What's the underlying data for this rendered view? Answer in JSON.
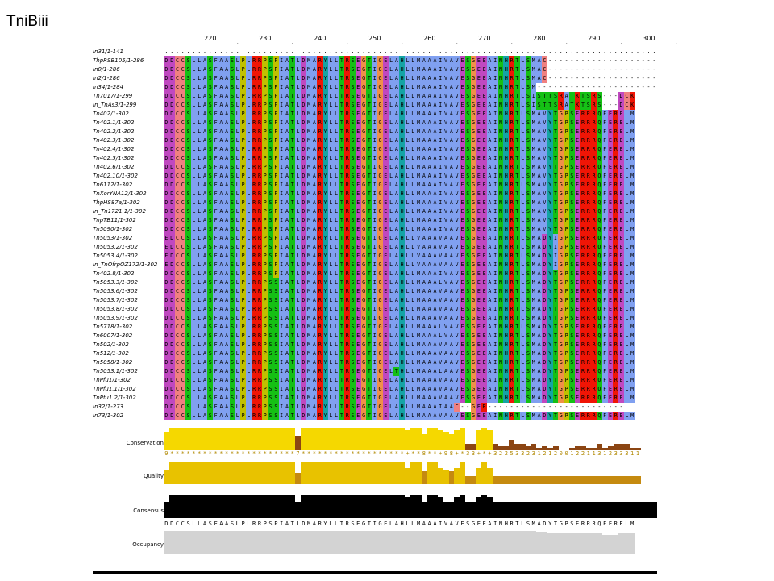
{
  "title": "TniBiii",
  "ruler": {
    "start_position": 212,
    "labels": [
      "220",
      "230",
      "240",
      "250",
      "260",
      "270",
      "280",
      "290",
      "300"
    ]
  },
  "sequences": [
    {
      "name": "In31/1-141",
      "seq": "..........................................................................................V"
    },
    {
      "name": "ThpRSB105/1-286",
      "seq": "DDCCSLLASFAASLPLRRPSPIATLDMARYLLTRSEGTIGELAHLLMAAAIVAVESGEEAINHRTLSMAC----------------------"
    },
    {
      "name": "In0/1-286",
      "seq": "DDCCSLLASFAASLPLRRPSPIATLDMARYLLTRSEGTIGELAHLLMAAAIVAVESGEEAINHRTLSMAC----------------------"
    },
    {
      "name": "In2/1-286",
      "seq": "DDCCSLLASFAASLPLRRPSPIATLDMARYLLTRSEGTIGELAHLLMAAAIVAVESGEEAINHRTLSMAC----------------------"
    },
    {
      "name": "In34/1-284",
      "seq": "DDCCSLLASFAASLPLRRPSPIATLDMARYLLTRSEGTIGELAHLLMAAAIVAVESGEEAINHRTLSM------------------------"
    },
    {
      "name": "Tn7017/1-299",
      "seq": "DDCCSLLASFAASLPLRRPSPIATLDMARYLLTRSEGTIGELAHLLMAAAIVAVESGEEAINHRTLSISTTSRATKTSRS---DCK"
    },
    {
      "name": "In_TnAs3/1-299",
      "seq": "DDCCSLLASFAASLPLRRPSPIATLDMARYLLTRSEGTIGELAHLLMAAAIVAVESGEEAINHRTLSISTTSRATKTSRS---DCK"
    },
    {
      "name": "Tn402/1-302",
      "seq": "DDCCSLLASFAASLPLRRPSPIATLDMARYLLTRSEGTIGELAHLLMAAAIVAVESGEEAINHRTLSMAVYTGPSERRRQFERELM"
    },
    {
      "name": "Tn402.1/1-302",
      "seq": "DDCCSLLASFAASLPLRRPSPIATLDMARYLLTRSEGTIGELAHLLMAAAIVAVESGEEAINHRTLSMAVYTGPSERRRQFERELM"
    },
    {
      "name": "Tn402.2/1-302",
      "seq": "DDCCSLLASFAASLPLRRPSPIATLDMARYLLTRSEGTIGELAHLLMAAAIVAVESGEEAINHRTLSMAVYTGPSERRRQFERELM"
    },
    {
      "name": "Tn402.3/1-302",
      "seq": "DDCCSLLASFAASLPLRRPSPIATLDMARYLLTRSEGTIGELAHLLMAAAIVAVESGEEAINHRTLSMAVYTGPSERRRQFERELM"
    },
    {
      "name": "Tn402.4/1-302",
      "seq": "DDCCSLLASFAASLPLRRPSPIATLDMARYLLTRSEGTIGELAHLLMAAAIVAVESGEEAINHRTLSMAVYTGPSERRRQFERELM"
    },
    {
      "name": "Tn402.5/1-302",
      "seq": "DDCCSLLASFAASLPLRRPSPIATLDMARYLLTRSEGTIGELAHLLMAAAIVAVESGEEAINHRTLSMAVYTGPSERRRQFERELM"
    },
    {
      "name": "Tn402.6/1-302",
      "seq": "DDCCSLLASFAASLPLRRPSPIATLDMARYLLTRSEGTIGELAHLLMAAAIVAVESGEEAINHRTLSMAVYTGPSERRRQFERELM"
    },
    {
      "name": "Tn402.10/1-302",
      "seq": "DDCCSLLASFAASLPLRRPSPIATLDMARYLLTRSEGTIGELAHLLMAAAIVAVESGEEAINHRTLSMAVYTGPSERRRQFERELM"
    },
    {
      "name": "Tn6112/1-302",
      "seq": "DDCCSLLASFAASLPLRRPSPIATLDMARYLLTRSEGTIGELAHLLMAAAIVAVESGEEAINHRTLSMAVYTGPSERRRQFERELM"
    },
    {
      "name": "TnXorYNA12/1-302",
      "seq": "DDCCSLLASFAASLPLRRPSPIATLDMARYLLTRSEGTIGELAHLLMAAAIVAVESGEEAINHRTLSMAVYTGPSERRRQFERELM"
    },
    {
      "name": "ThpHS87a/1-302",
      "seq": "DDCCSLLASFAASLPLRRPSPIATLDMARYLLTRSEGTIGELAHLLMAAAIVAVESGEEAINHRTLSMAVYTGPSERRRQFERELM"
    },
    {
      "name": "In_Tn1721.1/1-302",
      "seq": "DDCCSLLASFAASLPLRRPSPIATLDMARYLLTRSEGTIGELAHLLMAAAIVAVESGEEAINHRTLSMAVYTGPSERRRQFERELM"
    },
    {
      "name": "TnpTB11/1-302",
      "seq": "DDCCSLLASFAASLPLRRPSPIATLDMARYLLTRSEGTIGELAHLLMAAAIVAVESGEEAINHRTLSMAVYTGPSERRRQFERELM"
    },
    {
      "name": "Tn5090/1-302",
      "seq": "DDCCSLLASFAASLPLRRPSPIATLDMARYLLTRSEGTIGELAHLLMAAAIVAVESGEEAINHRTLSMAVYTGPSERRRQFERELM"
    },
    {
      "name": "Tn5053/1-302",
      "seq": "EDCCSLLASFAASLPLRRPSPIATLDMARYLLTRSEGTIGELAHLLVAAAVAAVESGEEAINHRTLSMADYIGPSERRRQFERELM"
    },
    {
      "name": "Tn5053.2/1-302",
      "seq": "EDCCSLLASFAASLPLRRPSPIATLDMARYLLTRSEGTIGELAHLLVAAAVAAVESGEEAINHRTLSMADYIGPSERRRQFERELM"
    },
    {
      "name": "Tn5053.4/1-302",
      "seq": "EDCCSLLASFAASLPLRRPSPIATLDMARYLLTRSEGTIGELAHLLVAAAVAAVESGEEAINHRTLSMADYIGPSERRRQFERELM"
    },
    {
      "name": "In_TnOfrpOZ172/1-302",
      "seq": "EDCCSLLASFAASLPLRRPSPIATLDMARYLLTRSEGTIGELAHLLVAAAVAAVESGEEAINHRTLSMADYIGPSERRRQFERELM"
    },
    {
      "name": "Tn402.8/1-302",
      "seq": "DDCCSLLASFAASLPLRRPSPIATLDMARYLLTRSEGTIGELAHLLMAAAIVAVESGEEAINHRTLSMADYTGPSERRRQFERELM"
    },
    {
      "name": "Tn5053.3/1-302",
      "seq": "DDCCSLLASFAASLPLRRPSSIATLDMARYLLTRSEGTIGELAHLLMAAALVAVESGEEAINHRTLSMADYTGPSERRRQFERELM"
    },
    {
      "name": "Tn5053.6/1-302",
      "seq": "DDCCSLLASFAASLPLRRPSSIATLDMARYLLTRSEGTIGELAHLLMAAAVAAVESGEEAINHRTLSMADYTGPSERRRQFERELM"
    },
    {
      "name": "Tn5053.7/1-302",
      "seq": "DDCCSLLASFAASLPLRRPSSIATLDMARYLLTRSEGTIGELAHLLMAAAVAAVESGEEAINHRTLSMADYTGPSERRRQFERELM"
    },
    {
      "name": "Tn5053.8/1-302",
      "seq": "DDCCSLLASFAASLPLRRPSSIATLDMARYLLTRSEGTIGELAHLLMAAAVAAVESGEEAINHRTLSMADYTGPSERRRQFERELM"
    },
    {
      "name": "Tn5053.9/1-302",
      "seq": "DDCCSLLASFAASLPLRRPSSIATLDMARYLLTRSEGTIGELAHLLMAAAVAAVESGEEAINHRTLSMADYTGPSERRRQFERELM"
    },
    {
      "name": "Tn5718/1-302",
      "seq": "DDCCSLLASFAASLPLRRPSSIATLDMARYLLTRSEGTIGELAHLLMAAALVAVESGEEAINHRTLSMADYTGPSERRRQFERELM"
    },
    {
      "name": "Tn6007/1-302",
      "seq": "DDCCSLLASFAASLPLRRPSSIATLDMARYLLTRSEGTIGELAHLLMAAALVAVESGEEAINHRTLSMADYTGPSERRRQFERELM"
    },
    {
      "name": "Tn502/1-302",
      "seq": "DDCCSLLASFAASLPLRRPSSIATLDMARYLLTRSEGTIGELAHLLMAAAVAAVESGEEAINHRTLSMADYTGPSERRRQFERELM"
    },
    {
      "name": "Tn512/1-302",
      "seq": "DDCCSLLASFAASLPLRRPSSIATLDMARYLLTRSEGTIGELAHLLMAAAVAAVESGEEAINHRTLSMADYTGPSERRRQFERELM"
    },
    {
      "name": "Tn5058/1-302",
      "seq": "DDCCSLLASFAASLPLRRPSSIATLDMARYLLTRSEGTIGELAHLLMAAAVAAVESGEEAINHRTLSMADYTGPSERRRQFERELM"
    },
    {
      "name": "Tn5053.1/1-302",
      "seq": "DDCCSLLASFAASLPLRRPSSIATLDMARYLLTRSEGTIGELTHLLMAAALAAVESGEEAINHRTLSMADYTGPSERRRQFERELM"
    },
    {
      "name": "TnPfu1/1-302",
      "seq": "DDCCSLLASFAASLPLRRPSSIATLDMARYLLTRSEGTIGELAHLLMAAAVAAVESGEEAINHRTLSMADYTGPSERRRQFERELM"
    },
    {
      "name": "TnPfu1.1/1-302",
      "seq": "DDCCSLLASFAASLPLRRPSSIATLDMARYLLTRSEGTIGELAHLLMAAAVAAVESGEEAINHRTLSMADYTGPSERRRQFERELM"
    },
    {
      "name": "TnPfu1.2/1-302",
      "seq": "DDCCSLLASFAASLPLRRPSSIATLDMARYLLTRSEGTIGELAHLLMAAAVAAVESGEEAINHRTLSMADYTGPSERRRQFERELM"
    },
    {
      "name": "In32/1-273",
      "seq": "DDCCSLLASFAASLPLRRPSSIATLDMARYLLTRSEGTIGELAHLLMAAAIAAC--GER-------------------------"
    },
    {
      "name": "In73/1-302",
      "seq": "DDCCSLLASFAASLPLRRPSSIATLDMARYLLTRSEGTIGELAHLLMAAAVAAVESGEEAINHRTLSMADYTGPSERRRQFERELM"
    }
  ],
  "tracks": {
    "conservation_label": "Conservation",
    "quality_label": "Quality",
    "consensus_label": "Consensus",
    "occupancy_label": "Occupancy",
    "conservation_scores": "9***********************7*******************+**8**+98+*33+*+322533231212001221131233311",
    "consensus_sequence": "DDCCSLLASFAASLPLRRPSPIATLDMARYLLTRSEGTIGELAHLLMAAAIVAVESGEEAINHRTLSMADYTGPSERRRQFERELM"
  },
  "colors": {
    "hydrophobic": "#80a0f0",
    "acidic": "#c048c0",
    "basic": "#f01505",
    "polar": "#15c015",
    "cysteine": "#f08080",
    "glycine": "#f09048",
    "proline": "#c0c000",
    "aromatic": "#15a4a4",
    "conservation_bar": "#f5d800",
    "conservation_low": "#8b4513",
    "consensus_bar": "#000000",
    "occupancy_bar": "#d3d3d3"
  }
}
